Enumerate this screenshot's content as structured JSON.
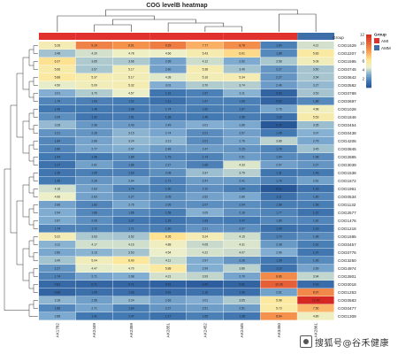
{
  "chart_data": {
    "type": "heatmap",
    "title": "COG levelB heatmap",
    "columns": [
      "AK1782",
      "AK2449",
      "AK2359",
      "AK2851",
      "AK2452",
      "AK2445",
      "AK3450",
      "AK2861"
    ],
    "column_groups": [
      "AMI",
      "AMI",
      "AMI",
      "AMI",
      "AMI",
      "AMI",
      "AMI",
      "AMM"
    ],
    "group_header": "Group",
    "groups": [
      {
        "name": "AMI",
        "color": "#e0312f"
      },
      {
        "name": "AMM",
        "color": "#3e6ea8"
      }
    ],
    "colorbar": {
      "min": 0,
      "max": 12,
      "ticks": [
        2,
        4,
        6,
        8,
        10,
        12
      ]
    },
    "rows": [
      {
        "label": "COG1629",
        "values": [
          5.28,
          9.14,
          8.61,
          9.29,
          7.77,
          8.78,
          1.64,
          4.21
        ]
      },
      {
        "label": "COG2207",
        "values": [
          3.48,
          4.2,
          4.78,
          4.66,
          5.43,
          6.61,
          1.88,
          5.83
        ]
      },
      {
        "label": "COG1595",
        "values": [
          6.37,
          3.65,
          3.66,
          2.65,
          4.12,
          2.92,
          3.58,
          5.08
        ]
      },
      {
        "label": "COG0745",
        "values": [
          5.66,
          3.57,
          5.17,
          2.6,
          5.38,
          3.49,
          2.27,
          3.5
        ]
      },
      {
        "label": "COG0642",
        "values": [
          5.88,
          5.37,
          5.17,
          4.38,
          5.16,
          5.34,
          2.27,
          3.54
        ]
      },
      {
        "label": "COG0582",
        "values": [
          4.5,
          5.09,
          5.32,
          3.01,
          3.7,
          3.74,
          2.46,
          3.27
        ]
      },
      {
        "label": "COG0789",
        "values": [
          3.01,
          3.7,
          4.57,
          1.31,
          1.67,
          3.11,
          0.63,
          3.53
        ]
      },
      {
        "label": "COG0697",
        "values": [
          1.79,
          1.63,
          1.52,
          1.11,
          1.67,
          1.65,
          0.62,
          1.88
        ]
      },
      {
        "label": "COG1028",
        "values": [
          1.4,
          1.46,
          1.48,
          1.74,
          1.6,
          1.67,
          2.76,
          4.98
        ]
      },
      {
        "label": "COG1846",
        "values": [
          2.09,
          1.32,
          1.51,
          1.38,
          1.46,
          1.58,
          1.18,
          5.53
        ]
      },
      {
        "label": "COG0454",
        "values": [
          3.28,
          2.36,
          2.43,
          2.49,
          3.01,
          2.86,
          0.15,
          3.35
        ]
      },
      {
        "label": "COG0438",
        "values": [
          2.21,
          2.28,
          3.15,
          2.74,
          2.01,
          2.57,
          1.45,
          3.07
        ]
      },
      {
        "label": "COG4206",
        "values": [
          1.84,
          2.66,
          3.24,
          3.13,
          2.01,
          2.76,
          3.86,
          2.79
        ]
      },
      {
        "label": "COG0845",
        "values": [
          1.8,
          2.77,
          2.97,
          2.48,
          2.47,
          2.25,
          1.78,
          3.45
        ]
      },
      {
        "label": "COG2885",
        "values": [
          1.44,
          1.46,
          1.89,
          1.79,
          1.74,
          2.51,
          1.94,
          1.98
        ]
      },
      {
        "label": "COG3039",
        "values": [
          1.17,
          2.61,
          1.86,
          2.27,
          1.66,
          4.33,
          2.57,
          2.27
        ]
      },
      {
        "label": "COG1538",
        "values": [
          1.3,
          1.65,
          1.63,
          2.08,
          3.37,
          3.79,
          1.31,
          1.48
        ]
      },
      {
        "label": "COG1672",
        "values": [
          1.46,
          2.26,
          2.64,
          1.71,
          2.47,
          2.41,
          1.76,
          2.61
        ]
      },
      {
        "label": "COG1961",
        "values": [
          4.18,
          2.63,
          1.74,
          1.6,
          2.1,
          1.64,
          0.12,
          1.18
        ]
      },
      {
        "label": "COG0534",
        "values": [
          4.66,
          2.63,
          2.27,
          2.09,
          2.62,
          2.86,
          1.11,
          1.8
        ]
      },
      {
        "label": "COG1132",
        "values": [
          2.66,
          1.82,
          2.76,
          2.05,
          2.07,
          2.04,
          1.58,
          1.58
        ]
      },
      {
        "label": "COG2577",
        "values": [
          2.94,
          1.86,
          1.86,
          1.58,
          3.05,
          2.16,
          1.77,
          1.22
        ]
      },
      {
        "label": "COG1476",
        "values": [
          2.87,
          2.06,
          1.37,
          1.25,
          1.63,
          1.47,
          1.85,
          1.81
        ]
      },
      {
        "label": "COG1216",
        "values": [
          1.74,
          1.72,
          1.71,
          1.6,
          2.21,
          2.07,
          1.09,
          1.29
        ]
      },
      {
        "label": "COG1595",
        "values": [
          5.22,
          3.63,
          3.52,
          6.35,
          5.24,
          4.15,
          1.7,
          1.98
        ]
      },
      {
        "label": "COG0457",
        "values": [
          3.11,
          4.17,
          4.16,
          4.88,
          4.05,
          4.31,
          2.38,
          1.61
        ]
      },
      {
        "label": "COG0776",
        "values": [
          2.8,
          3.13,
          3.53,
          4.54,
          4.22,
          4.07,
          2.96,
          1.37
        ]
      },
      {
        "label": "COG3250",
        "values": [
          3.49,
          5.04,
          6.0,
          4.11,
          2.97,
          2.26,
          1.39,
          1.96
        ]
      },
      {
        "label": "COG4974",
        "values": [
          2.27,
          4.47,
          4.7,
          5.88,
          2.99,
          3.86,
          1.19,
          2.69
        ]
      },
      {
        "label": "COG2801",
        "values": [
          1.74,
          2.71,
          2.98,
          4.21,
          3.93,
          2.7,
          8.86,
          3.94
        ]
      },
      {
        "label": "COG0018",
        "values": [
          0.81,
          0.71,
          0.71,
          0.51,
          0.4,
          0.61,
          10.26,
          0.92
        ]
      },
      {
        "label": "COG1253",
        "values": [
          0.68,
          1.09,
          1.03,
          0.91,
          1.16,
          1.06,
          2.61,
          8.97
        ]
      },
      {
        "label": "COG0583",
        "values": [
          3.18,
          2.56,
          3.24,
          2.63,
          3.01,
          3.65,
          5.98,
          12.0
        ]
      },
      {
        "label": "COG0477",
        "values": [
          1.86,
          2.71,
          1.64,
          2.27,
          2.51,
          2.51,
          5.73,
          7.56
        ]
      },
      {
        "label": "COG1309",
        "values": [
          2.88,
          1.41,
          1.47,
          1.17,
          1.65,
          1.38,
          8.64,
          4.89
        ]
      }
    ]
  },
  "watermark": "搜狐号@谷禾健康"
}
